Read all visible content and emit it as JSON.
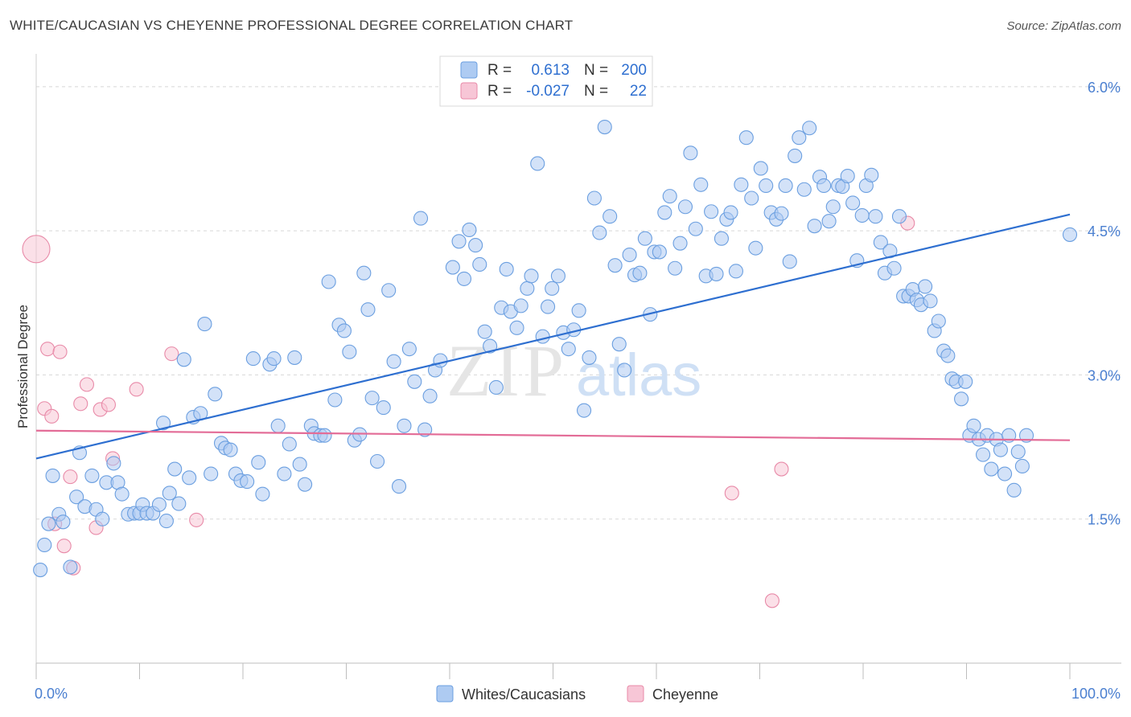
{
  "title": "WHITE/CAUCASIAN VS CHEYENNE PROFESSIONAL DEGREE CORRELATION CHART",
  "source": "Source: ZipAtlas.com",
  "watermark": {
    "zip": "ZIP",
    "atlas": "atlas"
  },
  "colors": {
    "blue_fill": "#aecbf2",
    "blue_stroke": "#6b9fe0",
    "blue_line": "#2e6fd0",
    "pink_fill": "#f7c6d6",
    "pink_stroke": "#e88aa8",
    "pink_line": "#e36c97",
    "tick_blue": "#4a7fd0",
    "grid": "#d8d8d8"
  },
  "stats_legend": [
    {
      "r_label": "R =",
      "r_value": "0.613",
      "n_label": "N =",
      "n_value": "200"
    },
    {
      "r_label": "R =",
      "r_value": "-0.027",
      "n_label": "N =",
      "n_value": "22"
    }
  ],
  "chart_data": {
    "type": "scatter",
    "title": "WHITE/CAUCASIAN VS CHEYENNE PROFESSIONAL DEGREE CORRELATION CHART",
    "xlabel": "",
    "ylabel": "Professional Degree",
    "xlim": [
      0,
      100
    ],
    "ylim": [
      0.0,
      6.3
    ],
    "x_tick_labels": [
      "0.0%",
      "100.0%"
    ],
    "y_ticks": [
      1.5,
      3.0,
      4.5,
      6.0
    ],
    "y_tick_labels": [
      "1.5%",
      "3.0%",
      "4.5%",
      "6.0%"
    ],
    "grid": "horizontal dashed",
    "legend_placement": "bottom-center",
    "series": [
      {
        "name": "Whites/Caucasians",
        "color": "#aecbf2",
        "trend": {
          "x": [
            0,
            100
          ],
          "y": [
            2.13,
            4.67
          ]
        },
        "points": [
          [
            0.4,
            0.97
          ],
          [
            0.8,
            1.23
          ],
          [
            1.2,
            1.45
          ],
          [
            1.6,
            1.95
          ],
          [
            2.2,
            1.55
          ],
          [
            2.6,
            1.47
          ],
          [
            3.3,
            1.0
          ],
          [
            3.9,
            1.73
          ],
          [
            4.2,
            2.19
          ],
          [
            4.7,
            1.63
          ],
          [
            5.4,
            1.95
          ],
          [
            5.8,
            1.6
          ],
          [
            6.4,
            1.5
          ],
          [
            6.8,
            1.88
          ],
          [
            7.5,
            2.08
          ],
          [
            7.9,
            1.88
          ],
          [
            8.3,
            1.76
          ],
          [
            8.9,
            1.55
          ],
          [
            9.5,
            1.56
          ],
          [
            10,
            1.56
          ],
          [
            10.3,
            1.65
          ],
          [
            10.7,
            1.56
          ],
          [
            11.3,
            1.56
          ],
          [
            11.9,
            1.65
          ],
          [
            12.3,
            2.5
          ],
          [
            12.6,
            1.48
          ],
          [
            12.9,
            1.77
          ],
          [
            13.4,
            2.02
          ],
          [
            13.8,
            1.66
          ],
          [
            14.3,
            3.16
          ],
          [
            14.8,
            1.93
          ],
          [
            15.2,
            2.56
          ],
          [
            15.9,
            2.6
          ],
          [
            16.3,
            3.53
          ],
          [
            16.9,
            1.97
          ],
          [
            17.3,
            2.8
          ],
          [
            17.9,
            2.29
          ],
          [
            18.3,
            2.24
          ],
          [
            18.8,
            2.22
          ],
          [
            19.3,
            1.97
          ],
          [
            19.8,
            1.9
          ],
          [
            20.4,
            1.89
          ],
          [
            21.0,
            3.17
          ],
          [
            21.5,
            2.09
          ],
          [
            21.9,
            1.76
          ],
          [
            22.6,
            3.11
          ],
          [
            23.0,
            3.17
          ],
          [
            23.4,
            2.47
          ],
          [
            24.0,
            1.97
          ],
          [
            24.5,
            2.28
          ],
          [
            25.0,
            3.18
          ],
          [
            25.5,
            2.07
          ],
          [
            26.0,
            1.86
          ],
          [
            26.6,
            2.47
          ],
          [
            26.9,
            2.39
          ],
          [
            27.5,
            2.37
          ],
          [
            27.9,
            2.37
          ],
          [
            28.3,
            3.97
          ],
          [
            28.9,
            2.74
          ],
          [
            29.3,
            3.52
          ],
          [
            29.8,
            3.46
          ],
          [
            30.3,
            3.24
          ],
          [
            30.8,
            2.32
          ],
          [
            31.3,
            2.38
          ],
          [
            31.7,
            4.06
          ],
          [
            32.1,
            3.68
          ],
          [
            32.5,
            2.76
          ],
          [
            33.0,
            2.1
          ],
          [
            33.6,
            2.66
          ],
          [
            34.1,
            3.88
          ],
          [
            34.6,
            3.14
          ],
          [
            35.1,
            1.84
          ],
          [
            35.6,
            2.47
          ],
          [
            36.1,
            3.27
          ],
          [
            36.6,
            2.93
          ],
          [
            37.2,
            4.63
          ],
          [
            37.6,
            2.43
          ],
          [
            38.1,
            2.78
          ],
          [
            38.6,
            3.05
          ],
          [
            39.1,
            3.15
          ],
          [
            40.3,
            4.12
          ],
          [
            40.9,
            4.39
          ],
          [
            41.4,
            4.0
          ],
          [
            41.9,
            4.51
          ],
          [
            42.5,
            4.35
          ],
          [
            42.9,
            4.15
          ],
          [
            43.4,
            3.45
          ],
          [
            43.9,
            3.3
          ],
          [
            44.5,
            2.87
          ],
          [
            45.0,
            3.7
          ],
          [
            45.5,
            4.1
          ],
          [
            45.9,
            3.66
          ],
          [
            46.5,
            3.49
          ],
          [
            46.9,
            3.72
          ],
          [
            47.5,
            3.9
          ],
          [
            47.9,
            4.03
          ],
          [
            48.5,
            5.2
          ],
          [
            49.0,
            3.4
          ],
          [
            49.5,
            3.71
          ],
          [
            49.9,
            3.9
          ],
          [
            50.5,
            4.03
          ],
          [
            51.0,
            3.44
          ],
          [
            51.5,
            3.27
          ],
          [
            52.0,
            3.47
          ],
          [
            52.5,
            3.67
          ],
          [
            53.0,
            2.63
          ],
          [
            53.5,
            3.18
          ],
          [
            54.0,
            4.84
          ],
          [
            54.5,
            4.48
          ],
          [
            55.0,
            5.58
          ],
          [
            55.5,
            4.65
          ],
          [
            56.0,
            4.14
          ],
          [
            56.4,
            3.32
          ],
          [
            56.9,
            3.05
          ],
          [
            57.4,
            4.25
          ],
          [
            57.9,
            4.04
          ],
          [
            58.4,
            4.06
          ],
          [
            58.9,
            4.42
          ],
          [
            59.4,
            3.63
          ],
          [
            59.8,
            4.28
          ],
          [
            60.3,
            4.28
          ],
          [
            60.8,
            4.69
          ],
          [
            61.3,
            4.86
          ],
          [
            61.8,
            4.11
          ],
          [
            62.3,
            4.37
          ],
          [
            62.8,
            4.75
          ],
          [
            63.3,
            5.31
          ],
          [
            63.8,
            4.52
          ],
          [
            64.3,
            4.98
          ],
          [
            64.8,
            4.03
          ],
          [
            65.3,
            4.7
          ],
          [
            65.8,
            4.05
          ],
          [
            66.3,
            4.42
          ],
          [
            66.8,
            4.62
          ],
          [
            67.2,
            4.69
          ],
          [
            67.7,
            4.08
          ],
          [
            68.2,
            4.98
          ],
          [
            68.7,
            5.47
          ],
          [
            69.2,
            4.84
          ],
          [
            69.6,
            4.32
          ],
          [
            70.1,
            5.15
          ],
          [
            70.6,
            4.97
          ],
          [
            71.1,
            4.69
          ],
          [
            71.6,
            4.62
          ],
          [
            72.1,
            4.68
          ],
          [
            72.5,
            4.97
          ],
          [
            72.9,
            4.18
          ],
          [
            73.4,
            5.28
          ],
          [
            73.8,
            5.47
          ],
          [
            74.3,
            4.93
          ],
          [
            74.8,
            5.57
          ],
          [
            75.3,
            4.55
          ],
          [
            75.8,
            5.06
          ],
          [
            76.2,
            4.97
          ],
          [
            76.7,
            4.6
          ],
          [
            77.1,
            4.75
          ],
          [
            77.6,
            4.97
          ],
          [
            78.0,
            4.96
          ],
          [
            78.5,
            5.07
          ],
          [
            79.0,
            4.79
          ],
          [
            79.4,
            4.19
          ],
          [
            79.9,
            4.66
          ],
          [
            80.3,
            4.97
          ],
          [
            80.8,
            5.08
          ],
          [
            81.2,
            4.65
          ],
          [
            81.7,
            4.38
          ],
          [
            82.1,
            4.06
          ],
          [
            82.6,
            4.29
          ],
          [
            83.0,
            4.11
          ],
          [
            83.5,
            4.65
          ],
          [
            83.9,
            3.82
          ],
          [
            84.4,
            3.82
          ],
          [
            84.8,
            3.89
          ],
          [
            85.2,
            3.78
          ],
          [
            85.6,
            3.73
          ],
          [
            86.0,
            3.92
          ],
          [
            86.5,
            3.77
          ],
          [
            86.9,
            3.46
          ],
          [
            87.3,
            3.56
          ],
          [
            87.8,
            3.25
          ],
          [
            88.2,
            3.2
          ],
          [
            88.6,
            2.96
          ],
          [
            89.0,
            2.93
          ],
          [
            89.5,
            2.75
          ],
          [
            89.9,
            2.93
          ],
          [
            90.3,
            2.37
          ],
          [
            90.7,
            2.47
          ],
          [
            91.2,
            2.33
          ],
          [
            91.6,
            2.17
          ],
          [
            92.0,
            2.37
          ],
          [
            92.4,
            2.02
          ],
          [
            92.9,
            2.33
          ],
          [
            93.3,
            2.22
          ],
          [
            93.7,
            1.97
          ],
          [
            94.1,
            2.37
          ],
          [
            94.6,
            1.8
          ],
          [
            95.0,
            2.2
          ],
          [
            95.4,
            2.05
          ],
          [
            95.8,
            2.37
          ],
          [
            100,
            4.46
          ]
        ]
      },
      {
        "name": "Cheyenne",
        "color": "#f7c6d6",
        "trend": {
          "x": [
            0,
            100
          ],
          "y": [
            2.42,
            2.32
          ]
        },
        "points": [
          [
            0,
            4.31
          ],
          [
            0.8,
            2.65
          ],
          [
            1.1,
            3.27
          ],
          [
            1.5,
            2.57
          ],
          [
            1.8,
            1.45
          ],
          [
            2.3,
            3.24
          ],
          [
            2.7,
            1.22
          ],
          [
            3.3,
            1.94
          ],
          [
            3.6,
            0.99
          ],
          [
            4.3,
            2.7
          ],
          [
            4.9,
            2.9
          ],
          [
            5.8,
            1.41
          ],
          [
            6.2,
            2.64
          ],
          [
            7.0,
            2.69
          ],
          [
            7.4,
            2.13
          ],
          [
            9.7,
            2.85
          ],
          [
            13.1,
            3.22
          ],
          [
            15.5,
            1.49
          ],
          [
            67.3,
            1.77
          ],
          [
            71.2,
            0.65
          ],
          [
            72.1,
            2.02
          ],
          [
            84.3,
            4.58
          ]
        ]
      }
    ]
  }
}
